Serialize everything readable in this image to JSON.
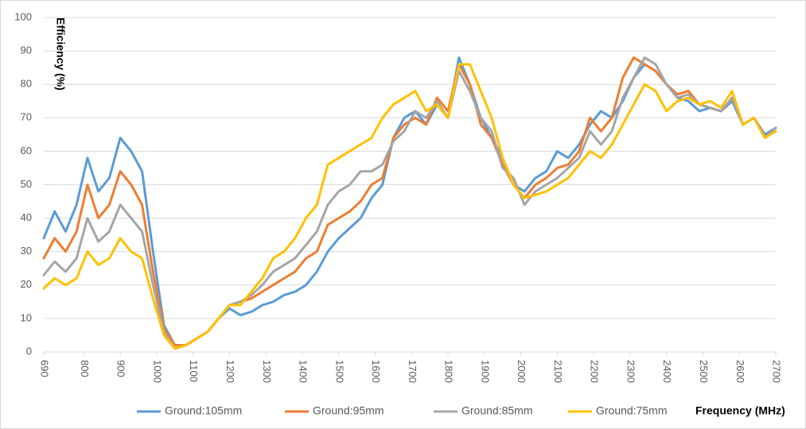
{
  "chart_data": {
    "type": "line",
    "y_label": "Efficiency (%)",
    "x_label": "Frequency (MHz)",
    "xlim": [
      690,
      2700
    ],
    "xticks": [
      690,
      800,
      900,
      1000,
      1100,
      1200,
      1300,
      1400,
      1500,
      1600,
      1700,
      1800,
      1900,
      2000,
      2100,
      2200,
      2300,
      2400,
      2500,
      2600,
      2700
    ],
    "ylim": [
      0,
      100
    ],
    "yticks": [
      0,
      10,
      20,
      30,
      40,
      50,
      60,
      70,
      80,
      90,
      100
    ],
    "grid": true,
    "legend": "bottom",
    "x": [
      690,
      720,
      750,
      780,
      810,
      840,
      870,
      900,
      930,
      960,
      990,
      1020,
      1050,
      1080,
      1110,
      1140,
      1170,
      1200,
      1230,
      1260,
      1290,
      1320,
      1350,
      1380,
      1410,
      1440,
      1470,
      1500,
      1530,
      1560,
      1590,
      1620,
      1650,
      1680,
      1710,
      1740,
      1770,
      1800,
      1830,
      1860,
      1890,
      1920,
      1950,
      1980,
      2010,
      2040,
      2070,
      2100,
      2130,
      2160,
      2190,
      2220,
      2250,
      2280,
      2310,
      2340,
      2370,
      2400,
      2430,
      2460,
      2490,
      2520,
      2550,
      2580,
      2610,
      2640,
      2670,
      2700
    ],
    "series": [
      {
        "name": "Ground:105mm",
        "color": "#5b9bd5",
        "values": [
          34,
          42,
          36,
          44,
          58,
          48,
          52,
          64,
          60,
          54,
          30,
          8,
          2,
          2,
          4,
          6,
          10,
          13,
          11,
          12,
          14,
          15,
          17,
          18,
          20,
          24,
          30,
          34,
          37,
          40,
          46,
          50,
          64,
          70,
          72,
          68,
          74,
          70,
          88,
          80,
          70,
          64,
          58,
          50,
          48,
          52,
          54,
          60,
          58,
          62,
          68,
          72,
          70,
          75,
          82,
          86,
          84,
          80,
          76,
          75,
          72,
          73,
          72,
          75,
          68,
          70,
          65,
          67
        ]
      },
      {
        "name": "Ground:95mm",
        "color": "#ed7d31",
        "values": [
          28,
          34,
          30,
          36,
          50,
          40,
          44,
          54,
          50,
          44,
          24,
          7,
          2,
          2,
          4,
          6,
          10,
          14,
          15,
          16,
          18,
          20,
          22,
          24,
          28,
          30,
          38,
          40,
          42,
          45,
          50,
          52,
          64,
          68,
          70,
          68,
          76,
          72,
          86,
          80,
          68,
          64,
          56,
          50,
          46,
          50,
          52,
          55,
          56,
          60,
          70,
          66,
          70,
          82,
          88,
          86,
          84,
          80,
          77,
          78,
          74,
          73,
          72,
          76,
          68,
          70,
          64,
          67
        ]
      },
      {
        "name": "Ground:85mm",
        "color": "#a5a5a5",
        "values": [
          23,
          27,
          24,
          28,
          40,
          33,
          36,
          44,
          40,
          36,
          20,
          6,
          1,
          2,
          4,
          6,
          10,
          14,
          15,
          17,
          20,
          24,
          26,
          28,
          32,
          36,
          44,
          48,
          50,
          54,
          54,
          56,
          63,
          66,
          72,
          70,
          75,
          70,
          84,
          78,
          70,
          66,
          55,
          52,
          44,
          48,
          50,
          52,
          55,
          58,
          66,
          62,
          66,
          76,
          82,
          88,
          86,
          80,
          76,
          77,
          74,
          73,
          72,
          76,
          68,
          70,
          64,
          67
        ]
      },
      {
        "name": "Ground:75mm",
        "color": "#ffc000",
        "values": [
          19,
          22,
          20,
          22,
          30,
          26,
          28,
          34,
          30,
          28,
          16,
          5,
          1,
          2,
          4,
          6,
          10,
          14,
          14,
          18,
          22,
          28,
          30,
          34,
          40,
          44,
          56,
          58,
          60,
          62,
          64,
          70,
          74,
          76,
          78,
          72,
          74,
          70,
          86,
          86,
          78,
          70,
          58,
          50,
          46,
          47,
          48,
          50,
          52,
          56,
          60,
          58,
          62,
          68,
          74,
          80,
          78,
          72,
          75,
          76,
          74,
          75,
          73,
          78,
          68,
          70,
          64,
          66
        ]
      }
    ]
  }
}
